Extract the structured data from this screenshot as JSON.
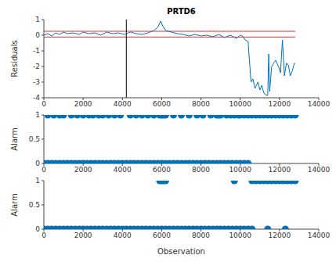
{
  "chart_data": [
    {
      "type": "line",
      "title": "PRTD6",
      "ylabel": "Residuals",
      "color": "#0072bd",
      "xlim": [
        0,
        14000
      ],
      "xticks": [
        0,
        2000,
        4000,
        6000,
        8000,
        10000,
        12000,
        14000
      ],
      "ylim": [
        -4,
        1
      ],
      "yticks": [
        -4,
        -3,
        -2,
        -1,
        0,
        1
      ],
      "hlines": [
        {
          "y": 0.25,
          "color": "#e03030"
        },
        {
          "y": -0.12,
          "color": "#e03030"
        }
      ],
      "vline": {
        "x": 4200,
        "color": "#000000"
      },
      "x": [
        0,
        200,
        400,
        600,
        800,
        1000,
        1200,
        1500,
        1800,
        2000,
        2300,
        2600,
        2900,
        3200,
        3500,
        3800,
        4100,
        4400,
        4700,
        5000,
        5300,
        5600,
        5800,
        5950,
        6050,
        6200,
        6500,
        6800,
        7100,
        7400,
        7700,
        8000,
        8300,
        8600,
        8900,
        9200,
        9500,
        9800,
        10000,
        10100,
        10250,
        10400,
        10550,
        10650,
        10750,
        10900,
        11000,
        11100,
        11200,
        11300,
        11400,
        11450,
        11500,
        11600,
        11800,
        11950,
        12050,
        12150,
        12250,
        12350,
        12450,
        12550,
        12650,
        12750,
        12800
      ],
      "values": [
        0.0,
        0.1,
        -0.05,
        0.15,
        0.05,
        0.2,
        0.1,
        0.15,
        0.05,
        0.2,
        0.1,
        0.15,
        0.0,
        0.2,
        0.1,
        0.15,
        0.05,
        0.2,
        0.1,
        0.05,
        0.15,
        0.3,
        0.5,
        0.9,
        0.6,
        0.3,
        0.2,
        0.1,
        0.05,
        -0.05,
        0.05,
        -0.05,
        0.0,
        -0.1,
        0.05,
        -0.15,
        0.0,
        -0.2,
        0.0,
        -0.05,
        -0.3,
        -0.4,
        -3.0,
        -2.8,
        -3.4,
        -3.0,
        -3.5,
        -3.2,
        -3.7,
        -3.8,
        -3.85,
        -1.2,
        -3.6,
        -2.0,
        -1.6,
        -2.0,
        -2.4,
        -0.3,
        -2.6,
        -1.8,
        -1.9,
        -2.6,
        -2.3,
        -1.8,
        -1.8
      ]
    },
    {
      "type": "scatter",
      "ylabel": "Alarm",
      "xlim": [
        0,
        14000
      ],
      "xticks": [
        0,
        2000,
        4000,
        6000,
        8000,
        10000,
        12000,
        14000
      ],
      "ylim": [
        0,
        1
      ],
      "yticks": [
        0,
        0.5,
        1
      ],
      "series": [
        {
          "color": "#0072bd",
          "x": [
            0,
            200,
            400,
            600,
            800,
            1000,
            1200,
            1400,
            1600,
            1800,
            2000,
            2200,
            2400,
            2600,
            2800,
            3000,
            3200,
            3400,
            3600,
            3800,
            4000,
            4200,
            4400,
            4600,
            4800,
            5000,
            5200,
            5400,
            5600,
            5800,
            6000,
            6200,
            6400,
            6600,
            6800,
            7000,
            7200,
            7400,
            7600,
            7800,
            8000,
            8200,
            8400,
            8600,
            8800,
            9000,
            9200,
            9400,
            9600,
            9800,
            10000,
            10200,
            10400
          ],
          "values": [
            0,
            0,
            0,
            0,
            0,
            0,
            0,
            0,
            0,
            0,
            0,
            0,
            0,
            0,
            0,
            0,
            0,
            0,
            0,
            0,
            0,
            0,
            0,
            0,
            0,
            0,
            0,
            0,
            0,
            0,
            0,
            0,
            0,
            0,
            0,
            0,
            0,
            0,
            0,
            0,
            0,
            0,
            0,
            0,
            0,
            0,
            0,
            0,
            0,
            0,
            0,
            0,
            0
          ]
        },
        {
          "color": "#0072bd",
          "x": [
            200,
            500,
            800,
            1000,
            1400,
            1700,
            2000,
            2300,
            2500,
            2800,
            3000,
            3300,
            3600,
            3900,
            4400,
            4700,
            5000,
            5300,
            5600,
            5900,
            6000,
            6100,
            6200,
            6600,
            7000,
            7400,
            7800,
            8100,
            8500,
            8800,
            8900,
            9000,
            9300,
            9500,
            9700,
            9900,
            10000,
            10200,
            10400,
            10600,
            10800,
            11000,
            11200,
            11400,
            11600,
            11800,
            12000,
            12200,
            12400,
            12600,
            12800
          ],
          "values": [
            1,
            1,
            1,
            1,
            1,
            1,
            1,
            1,
            1,
            1,
            1,
            1,
            1,
            1,
            1,
            1,
            1,
            1,
            1,
            1,
            1,
            1,
            1,
            1,
            1,
            1,
            1,
            1,
            1,
            1,
            1,
            1,
            1,
            1,
            1,
            1,
            1,
            1,
            1,
            1,
            1,
            1,
            1,
            1,
            1,
            1,
            1,
            1,
            1,
            1,
            1
          ]
        }
      ]
    },
    {
      "type": "scatter",
      "ylabel": "Alarm",
      "xlabel": "Observation",
      "xlim": [
        0,
        14000
      ],
      "xticks": [
        0,
        2000,
        4000,
        6000,
        8000,
        10000,
        12000,
        14000
      ],
      "ylim": [
        0,
        1
      ],
      "yticks": [
        0,
        0.5,
        1
      ],
      "series": [
        {
          "color": "#0072bd",
          "x": [
            0,
            200,
            400,
            600,
            800,
            1000,
            1200,
            1400,
            1600,
            1800,
            2000,
            2200,
            2400,
            2600,
            2800,
            3000,
            3200,
            3400,
            3600,
            3800,
            4000,
            4200,
            4400,
            4600,
            4800,
            5000,
            5200,
            5400,
            5600,
            5800,
            6000,
            6200,
            6400,
            6600,
            6800,
            7000,
            7200,
            7400,
            7600,
            7800,
            8000,
            8200,
            8400,
            8600,
            8800,
            9000,
            9200,
            9400,
            9600,
            9800,
            10000,
            10200,
            10400,
            10600,
            11400,
            12300
          ],
          "values": [
            0,
            0,
            0,
            0,
            0,
            0,
            0,
            0,
            0,
            0,
            0,
            0,
            0,
            0,
            0,
            0,
            0,
            0,
            0,
            0,
            0,
            0,
            0,
            0,
            0,
            0,
            0,
            0,
            0,
            0,
            0,
            0,
            0,
            0,
            0,
            0,
            0,
            0,
            0,
            0,
            0,
            0,
            0,
            0,
            0,
            0,
            0,
            0,
            0,
            0,
            0,
            0,
            0,
            0,
            0,
            0
          ]
        },
        {
          "color": "#0072bd",
          "x": [
            5900,
            6000,
            6100,
            6200,
            9700,
            10600,
            10800,
            11000,
            11200,
            11400,
            11600,
            11800,
            12000,
            12200,
            12400,
            12600,
            12800
          ],
          "values": [
            1,
            1,
            1,
            1,
            1,
            1,
            1,
            1,
            1,
            1,
            1,
            1,
            1,
            1,
            1,
            1,
            1
          ]
        }
      ]
    }
  ]
}
